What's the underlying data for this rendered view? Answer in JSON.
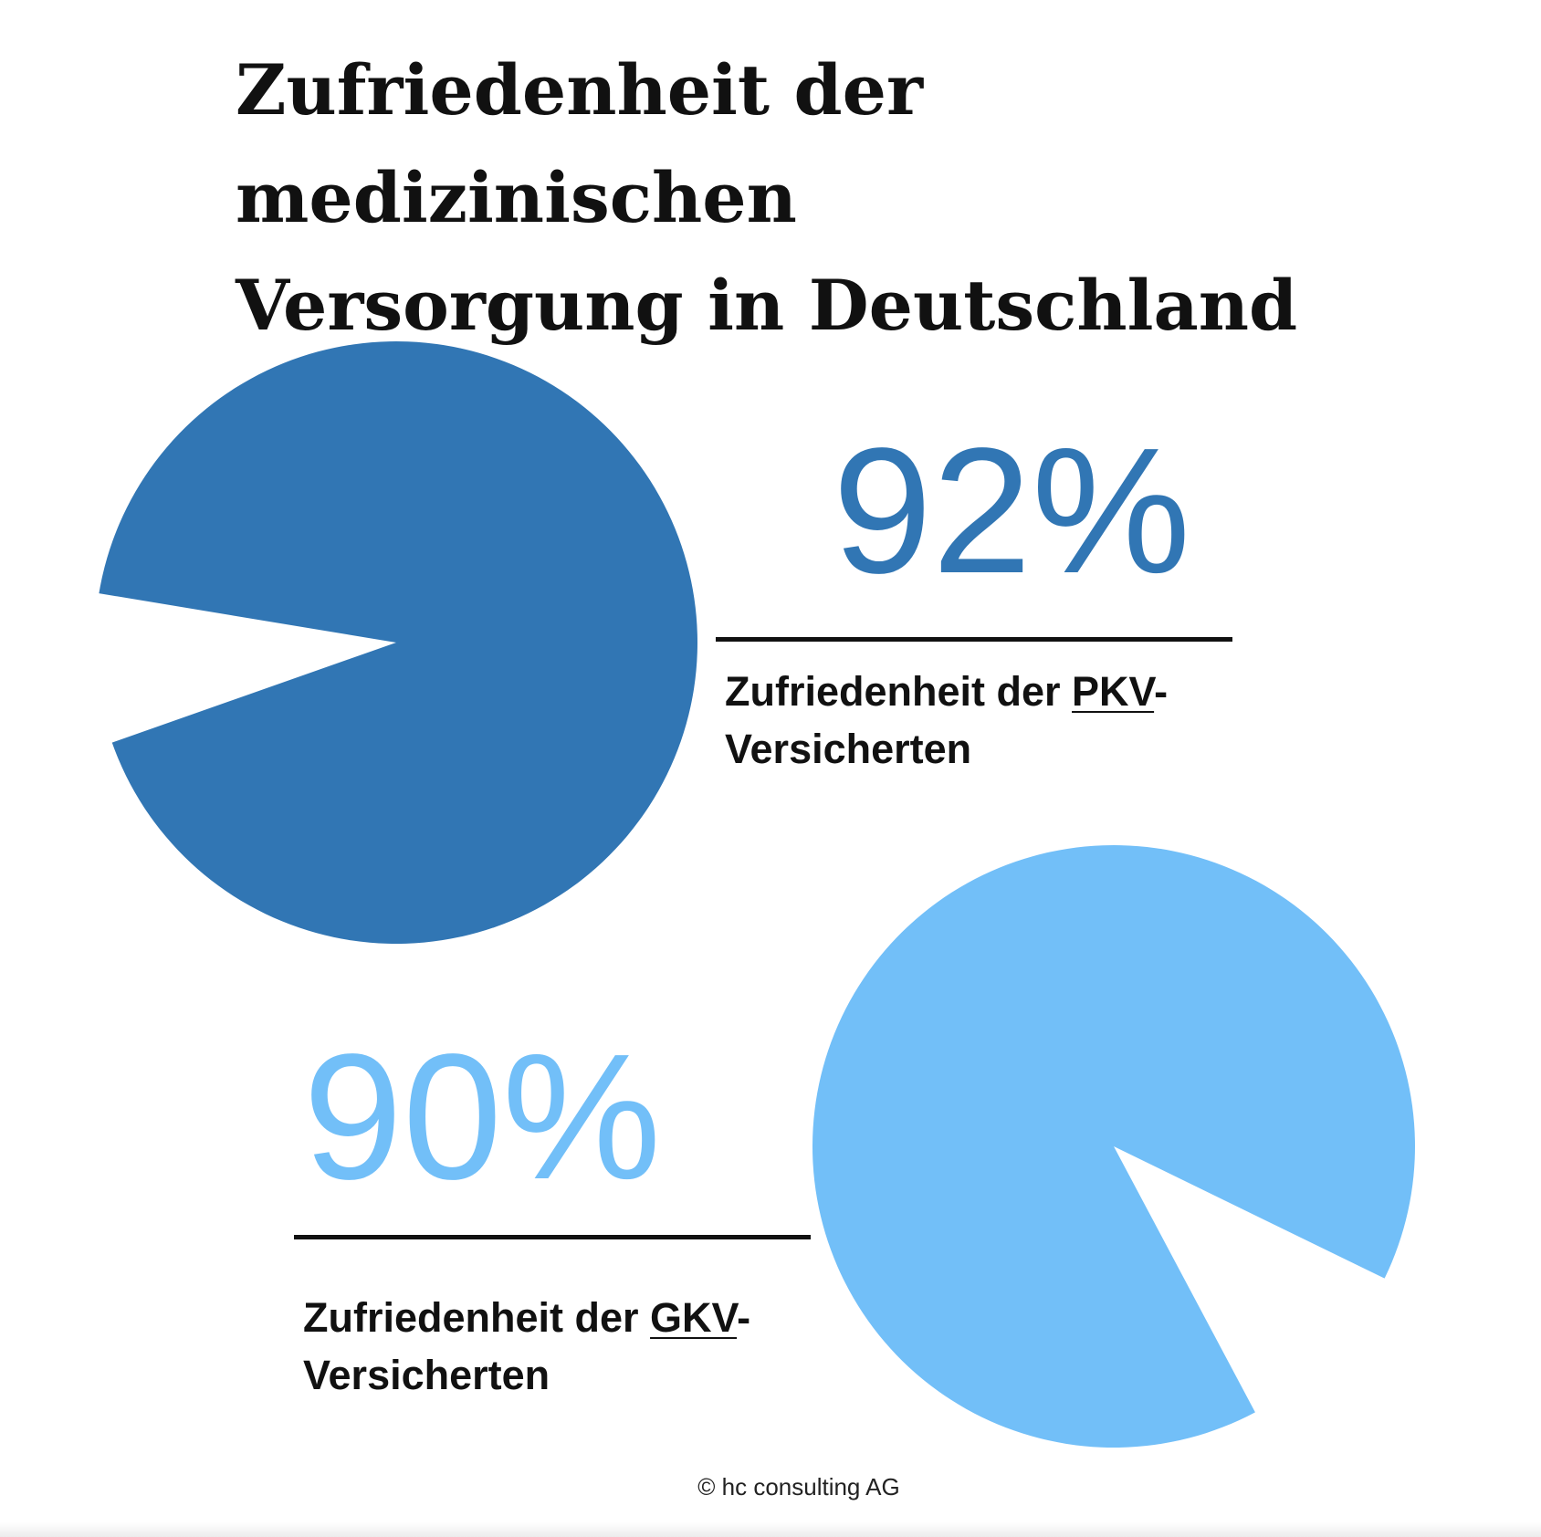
{
  "title": {
    "line1": "Zufriedenheit der medizinischen",
    "line2": "Versorgung in Deutschland"
  },
  "chart_data": [
    {
      "type": "pie",
      "name": "PKV",
      "value_label": "92%",
      "values": [
        92,
        8
      ],
      "color": "#3176b4",
      "caption_prefix": "Zufriedenheit der ",
      "caption_abbr": "PKV",
      "caption_suffix": "-",
      "caption_line2": "Versicherten"
    },
    {
      "type": "pie",
      "name": "GKV",
      "value_label": "90%",
      "values": [
        90,
        10
      ],
      "color": "#72bff8",
      "caption_prefix": "Zufriedenheit der ",
      "caption_abbr": "GKV",
      "caption_suffix": "-",
      "caption_line2": "Versicherten"
    }
  ],
  "footer": {
    "copyright": "© hc consulting AG"
  }
}
